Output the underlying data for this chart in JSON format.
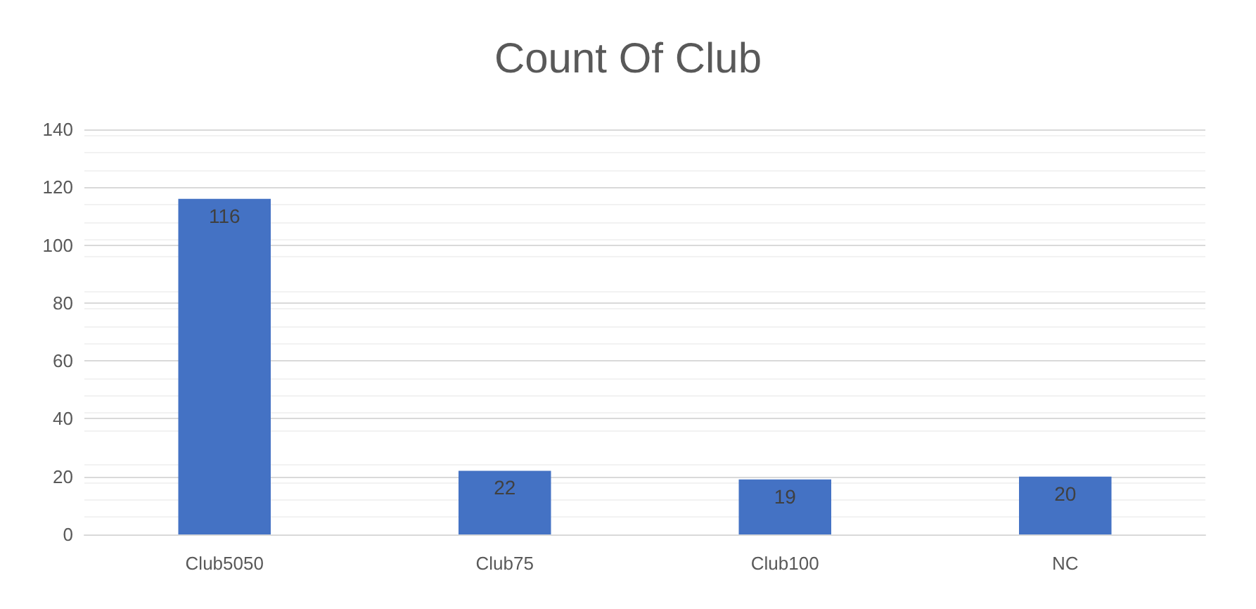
{
  "chart_data": {
    "type": "bar",
    "title": "Count Of Club",
    "categories": [
      "Club5050",
      "Club75",
      "Club100",
      "NC"
    ],
    "values": [
      116,
      22,
      19,
      20
    ],
    "color": "#4472c4",
    "ylim": [
      0,
      140
    ],
    "yticks": [
      0,
      20,
      40,
      60,
      80,
      100,
      120,
      140
    ],
    "grid": "y",
    "data_labels": true
  }
}
